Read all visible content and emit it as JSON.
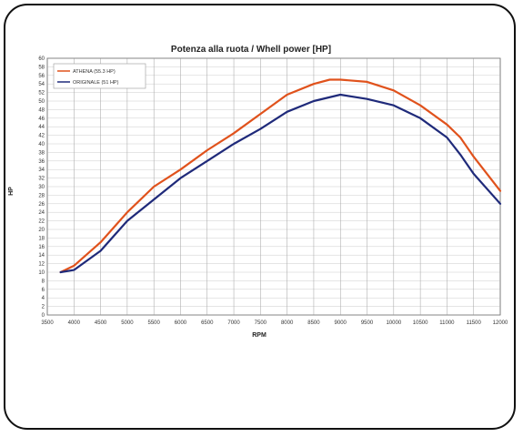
{
  "chart_data": {
    "type": "line",
    "title": "Potenza alla ruota / Whell power [HP]",
    "xlabel": "RPM",
    "ylabel": "HP",
    "xlim": [
      3500,
      12000
    ],
    "ylim": [
      0,
      60
    ],
    "x_ticks": [
      "3500",
      "4000",
      "4500",
      "5000",
      "5500",
      "6000",
      "6500",
      "7000",
      "7500",
      "8000",
      "8500",
      "9000",
      "9500",
      "10000",
      "10500",
      "11000",
      "11500",
      "12000"
    ],
    "y_ticks": [
      "0",
      "2",
      "4",
      "6",
      "8",
      "10",
      "12",
      "14",
      "16",
      "18",
      "20",
      "22",
      "24",
      "26",
      "28",
      "30",
      "32",
      "34",
      "36",
      "38",
      "40",
      "42",
      "44",
      "46",
      "48",
      "50",
      "52",
      "54",
      "56",
      "58",
      "60"
    ],
    "grid": true,
    "legend_position": "top-left",
    "series": [
      {
        "name": "ATHENA (55.3 HP)",
        "color": "#e0521c",
        "x": [
          3750,
          4000,
          4500,
          5000,
          5500,
          6000,
          6500,
          7000,
          7500,
          8000,
          8500,
          8800,
          9000,
          9500,
          10000,
          10500,
          11000,
          11250,
          11500,
          12000
        ],
        "y": [
          10,
          11.5,
          17,
          24,
          30,
          34,
          38.5,
          42.5,
          47,
          51.5,
          54,
          55,
          55,
          54.5,
          52.5,
          49,
          44.5,
          41.5,
          37,
          29
        ]
      },
      {
        "name": "ORIGINALE (51 HP)",
        "color": "#1f2a7a",
        "x": [
          3750,
          4000,
          4500,
          5000,
          5500,
          6000,
          6500,
          7000,
          7500,
          8000,
          8500,
          9000,
          9500,
          10000,
          10500,
          11000,
          11250,
          11500,
          12000
        ],
        "y": [
          10,
          10.5,
          15,
          22,
          27,
          32,
          36,
          40,
          43.5,
          47.5,
          50,
          51.5,
          50.5,
          49,
          46,
          41.5,
          37.5,
          33,
          26
        ]
      }
    ]
  }
}
